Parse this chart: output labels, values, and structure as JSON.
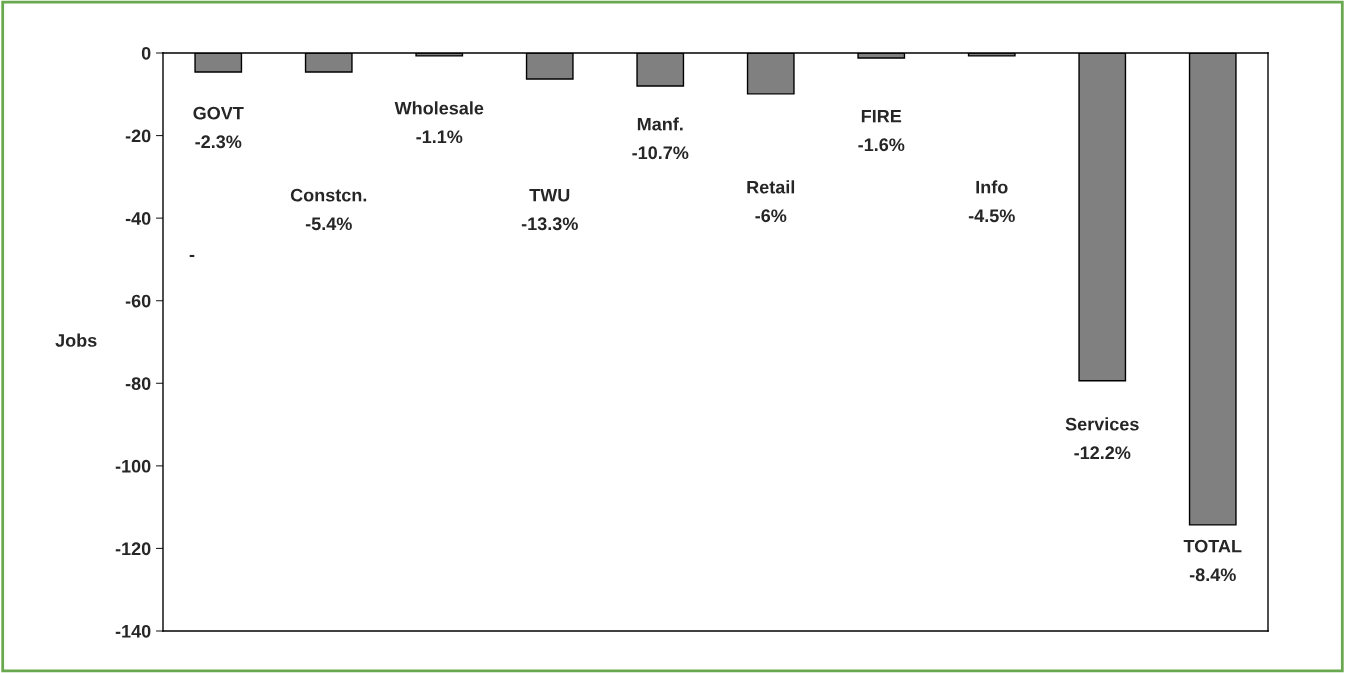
{
  "chart_data": {
    "type": "bar",
    "ylabel": "Jobs",
    "categories": [
      "GOVT\n-2.3%",
      "Constcn.\n-5.4%",
      "Wholesale\n-1.1%",
      "TWU\n-13.3%",
      "Manf.\n-10.7%",
      "Retail\n-6%",
      "FIRE\n-1.6%",
      "Info\n-4.5%",
      "Services\n-12.2%",
      "TOTAL\n-8.4%"
    ],
    "values": [
      -4.6,
      -4.6,
      -0.7,
      -6.3,
      -8,
      -9.9,
      -1.2,
      -0.7,
      -79.4,
      -114.3
    ],
    "color": "#808080",
    "ylim": [
      -140,
      0
    ],
    "yticks": [
      -140,
      -120,
      -100,
      -80,
      -60,
      -40,
      -20,
      0
    ],
    "grid": false,
    "legend": false,
    "annotations": [
      "-"
    ]
  }
}
